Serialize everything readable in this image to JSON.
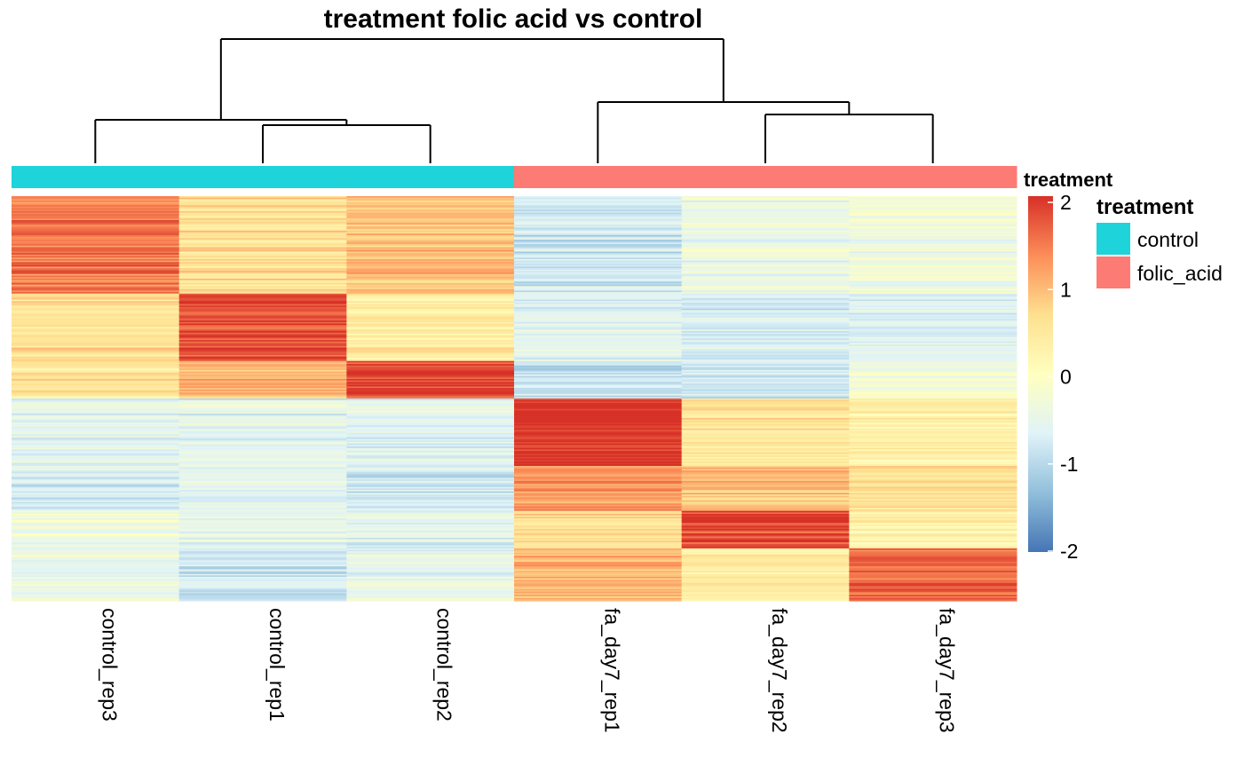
{
  "chart_data": {
    "type": "heatmap",
    "title": "treatment folic acid vs control",
    "columns": [
      "control_rep3",
      "control_rep1",
      "control_rep2",
      "fa_day7_rep1",
      "fa_day7_rep2",
      "fa_day7_rep3"
    ],
    "column_annotation": {
      "label": "treatment",
      "values": [
        "control",
        "control",
        "control",
        "folic_acid",
        "folic_acid",
        "folic_acid"
      ]
    },
    "legend": {
      "title": "treatment",
      "entries": [
        {
          "label": "control",
          "color": "#1ED3D9"
        },
        {
          "label": "folic_acid",
          "color": "#FC7B74"
        }
      ]
    },
    "colorbar": {
      "range": [
        -2,
        2
      ],
      "ticks": [
        "2",
        "1",
        "0",
        "-1",
        "-2"
      ],
      "colors": [
        "#4575B4",
        "#91BFDB",
        "#E0F3F8",
        "#FFFFBF",
        "#FEE090",
        "#FC8D59",
        "#D73027"
      ]
    },
    "dendrogram": "columns clustered: (control_rep3, (control_rep1, control_rep2)), (fa_day7_rep1, (fa_day7_rep2, fa_day7_rep3))",
    "row_blocks": [
      {
        "rows": 65,
        "means": [
          1.5,
          0.6,
          0.9,
          -0.8,
          -0.4,
          -0.3
        ]
      },
      {
        "rows": 45,
        "means": [
          0.6,
          1.8,
          0.4,
          -0.6,
          -0.7,
          -0.6
        ]
      },
      {
        "rows": 25,
        "means": [
          0.5,
          1.0,
          1.8,
          -0.9,
          -0.8,
          -0.2
        ]
      },
      {
        "rows": 45,
        "means": [
          -0.6,
          -0.6,
          -0.6,
          2.0,
          0.5,
          0.3
        ]
      },
      {
        "rows": 30,
        "means": [
          -0.7,
          -0.6,
          -0.8,
          1.2,
          0.9,
          0.6
        ]
      },
      {
        "rows": 25,
        "means": [
          -0.3,
          -0.5,
          -0.6,
          0.6,
          1.8,
          0.3
        ]
      },
      {
        "rows": 35,
        "means": [
          -0.5,
          -0.8,
          -0.5,
          1.0,
          0.3,
          1.6
        ]
      }
    ]
  }
}
